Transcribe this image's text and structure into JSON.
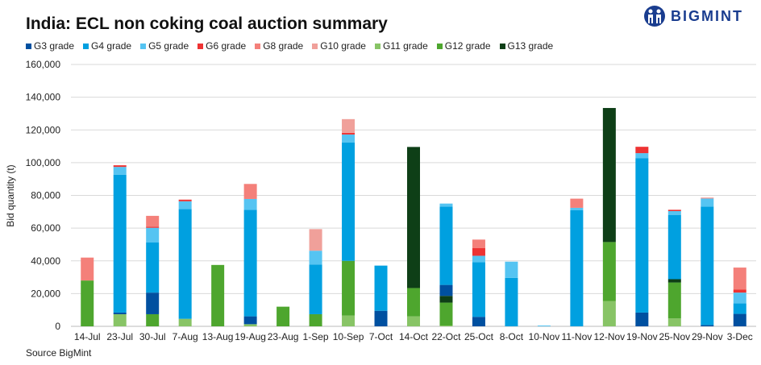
{
  "brand": "BIGMINT",
  "chart_data": {
    "type": "bar",
    "stacked": true,
    "title": "India: ECL non coking coal auction summary",
    "xlabel": "",
    "ylabel": "Bid quantity (t)",
    "ylim": [
      0,
      160000
    ],
    "yticks": [
      "0",
      "20,000",
      "40,000",
      "60,000",
      "80,000",
      "100,000",
      "120,000",
      "140,000",
      "160,000"
    ],
    "grid": true,
    "legend_position": "top",
    "source": "Source BigMint",
    "categories": [
      "14-Jul",
      "23-Jul",
      "30-Jul",
      "7-Aug",
      "13-Aug",
      "19-Aug",
      "23-Aug",
      "1-Sep",
      "10-Sep",
      "7-Oct",
      "14-Oct",
      "22-Oct",
      "25-Oct",
      "8-Oct",
      "10-Nov",
      "11-Nov",
      "12-Nov",
      "19-Nov",
      "25-Nov",
      "29-Nov",
      "3-Dec"
    ],
    "legend_order": [
      "G3 grade",
      "G4 grade",
      "G5 grade",
      "G6 grade",
      "G8 grade",
      "G10 grade",
      "G11 grade",
      "G12 grade",
      "G13 grade"
    ],
    "series": [
      {
        "name": "G11 grade",
        "color": "#88c466",
        "values": [
          0,
          7400,
          0,
          4600,
          0,
          1300,
          0,
          0,
          6600,
          0,
          6100,
          500,
          0,
          0,
          0,
          0,
          15500,
          0,
          4800,
          0,
          0
        ]
      },
      {
        "name": "G12 grade",
        "color": "#4ea62e",
        "values": [
          28000,
          0,
          7400,
          0,
          37500,
          0,
          12000,
          7400,
          33400,
          0,
          17300,
          14000,
          0,
          0,
          0,
          0,
          36000,
          0,
          22000,
          0,
          0
        ]
      },
      {
        "name": "G13 grade",
        "color": "#0e3f17",
        "values": [
          0,
          0,
          0,
          0,
          0,
          0,
          0,
          0,
          0,
          0,
          86200,
          4100,
          0,
          0,
          0,
          0,
          81900,
          0,
          2000,
          0,
          0
        ]
      },
      {
        "name": "G3 grade",
        "color": "#0050a0",
        "values": [
          0,
          1000,
          13200,
          0,
          0,
          4800,
          0,
          0,
          0,
          9500,
          0,
          6700,
          5800,
          0,
          0,
          0,
          0,
          8400,
          0,
          800,
          7600
        ]
      },
      {
        "name": "G4 grade",
        "color": "#00a0e0",
        "values": [
          0,
          84200,
          30600,
          67000,
          0,
          65100,
          0,
          30400,
          72400,
          27600,
          0,
          47900,
          33400,
          29600,
          0,
          70900,
          0,
          94400,
          39300,
          72400,
          6400
        ]
      },
      {
        "name": "G5 grade",
        "color": "#55c4f2",
        "values": [
          0,
          4800,
          9000,
          4800,
          0,
          6600,
          0,
          8400,
          4800,
          0,
          0,
          1800,
          3900,
          9900,
          500,
          1500,
          0,
          3000,
          2300,
          4900,
          6600
        ]
      },
      {
        "name": "G6 grade",
        "color": "#ee3333",
        "values": [
          0,
          1000,
          700,
          1000,
          0,
          0,
          0,
          0,
          1000,
          0,
          0,
          0,
          4800,
          0,
          0,
          0,
          0,
          3900,
          800,
          0,
          1800
        ]
      },
      {
        "name": "G8 grade",
        "color": "#f4807a",
        "values": [
          14000,
          0,
          6600,
          0,
          0,
          9200,
          0,
          0,
          0,
          0,
          0,
          0,
          5100,
          0,
          0,
          5600,
          0,
          0,
          0,
          500,
          13500
        ]
      },
      {
        "name": "G10 grade",
        "color": "#f0a09a",
        "values": [
          0,
          0,
          0,
          0,
          0,
          0,
          0,
          13200,
          8400,
          0,
          0,
          0,
          0,
          0,
          0,
          0,
          0,
          0,
          0,
          0,
          0
        ]
      }
    ]
  }
}
